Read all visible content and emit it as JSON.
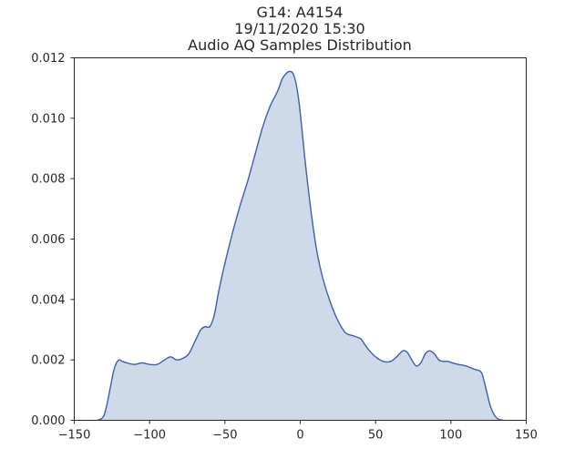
{
  "chart_data": {
    "type": "area",
    "title_lines": [
      "G14: A4154",
      "19/11/2020 15:30",
      "Audio AQ Samples Distribution"
    ],
    "xlabel": "",
    "ylabel": "",
    "xlim": [
      -150,
      150
    ],
    "ylim": [
      0,
      0.012
    ],
    "x_ticks": [
      -150,
      -100,
      -50,
      0,
      50,
      100,
      150
    ],
    "x_tick_labels": [
      "−150",
      "−100",
      "−50",
      "0",
      "50",
      "100",
      "150"
    ],
    "y_ticks": [
      0,
      0.002,
      0.004,
      0.006,
      0.008,
      0.01,
      0.012
    ],
    "y_tick_labels": [
      "0.000",
      "0.002",
      "0.004",
      "0.006",
      "0.008",
      "0.010",
      "0.012"
    ],
    "grid": false,
    "series": [
      {
        "fill_color": "#ced9ea",
        "line_color": "#3e5faa",
        "x": [
          -135,
          -132,
          -130,
          -128,
          -126,
          -124,
          -122,
          -120,
          -118,
          -115,
          -110,
          -105,
          -100,
          -95,
          -90,
          -86,
          -82,
          -78,
          -74,
          -70,
          -66,
          -63,
          -60,
          -57,
          -54,
          -50,
          -45,
          -40,
          -35,
          -30,
          -25,
          -20,
          -15,
          -12,
          -9,
          -7,
          -5,
          -3,
          -1,
          1,
          3,
          5,
          8,
          11,
          15,
          20,
          25,
          30,
          35,
          40,
          43,
          46,
          50,
          55,
          60,
          64,
          68,
          71,
          74,
          77,
          80,
          83,
          86,
          89,
          92,
          95,
          98,
          101,
          105,
          110,
          115,
          120,
          122,
          124,
          126,
          128,
          130,
          132,
          135
        ],
        "y": [
          0.0,
          5e-05,
          0.0002,
          0.0006,
          0.0011,
          0.0016,
          0.0019,
          0.002,
          0.00195,
          0.0019,
          0.00185,
          0.0019,
          0.00185,
          0.00185,
          0.002,
          0.0021,
          0.002,
          0.00205,
          0.0022,
          0.0026,
          0.003,
          0.0031,
          0.0031,
          0.0035,
          0.0043,
          0.0052,
          0.0062,
          0.0071,
          0.0079,
          0.0088,
          0.0097,
          0.0104,
          0.0109,
          0.0113,
          0.0115,
          0.01155,
          0.0115,
          0.0112,
          0.0106,
          0.0097,
          0.0087,
          0.0078,
          0.0066,
          0.0056,
          0.0047,
          0.0039,
          0.0033,
          0.0029,
          0.0028,
          0.0027,
          0.0025,
          0.0023,
          0.0021,
          0.00195,
          0.00195,
          0.0021,
          0.0023,
          0.00225,
          0.002,
          0.0018,
          0.0019,
          0.0022,
          0.0023,
          0.0022,
          0.002,
          0.00195,
          0.00195,
          0.0019,
          0.00185,
          0.0018,
          0.0017,
          0.0016,
          0.0013,
          0.0009,
          0.0005,
          0.00025,
          0.0001,
          3e-05,
          0.0
        ]
      }
    ]
  }
}
